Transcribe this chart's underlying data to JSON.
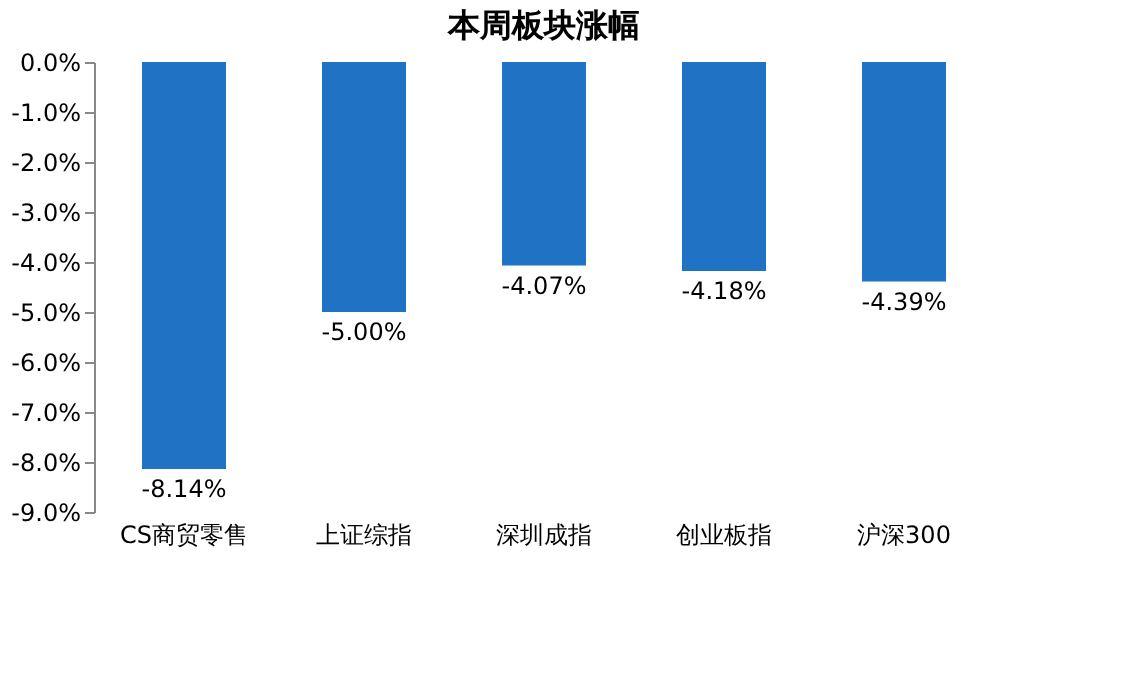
{
  "chart_data": {
    "type": "bar",
    "title": "本周板块涨幅",
    "categories": [
      "CS商贸零售",
      "上证综指",
      "深圳成指",
      "创业板指",
      "沪深300"
    ],
    "values": [
      -8.14,
      -5.0,
      -4.07,
      -4.18,
      -4.39
    ],
    "value_labels": [
      "-8.14%",
      "-5.00%",
      "-4.07%",
      "-4.18%",
      "-4.39%"
    ],
    "color": "#1f72c4",
    "ylim": [
      -9,
      0
    ],
    "yticks": [
      {
        "value": 0,
        "label": "0.0%"
      },
      {
        "value": -1,
        "label": "-1.0%"
      },
      {
        "value": -2,
        "label": "-2.0%"
      },
      {
        "value": -3,
        "label": "-3.0%"
      },
      {
        "value": -4,
        "label": "-4.0%"
      },
      {
        "value": -5,
        "label": "-5.0%"
      },
      {
        "value": -6,
        "label": "-6.0%"
      },
      {
        "value": -7,
        "label": "-7.0%"
      },
      {
        "value": -8,
        "label": "-8.0%"
      },
      {
        "value": -9,
        "label": "-9.0%"
      }
    ],
    "grid": false
  }
}
